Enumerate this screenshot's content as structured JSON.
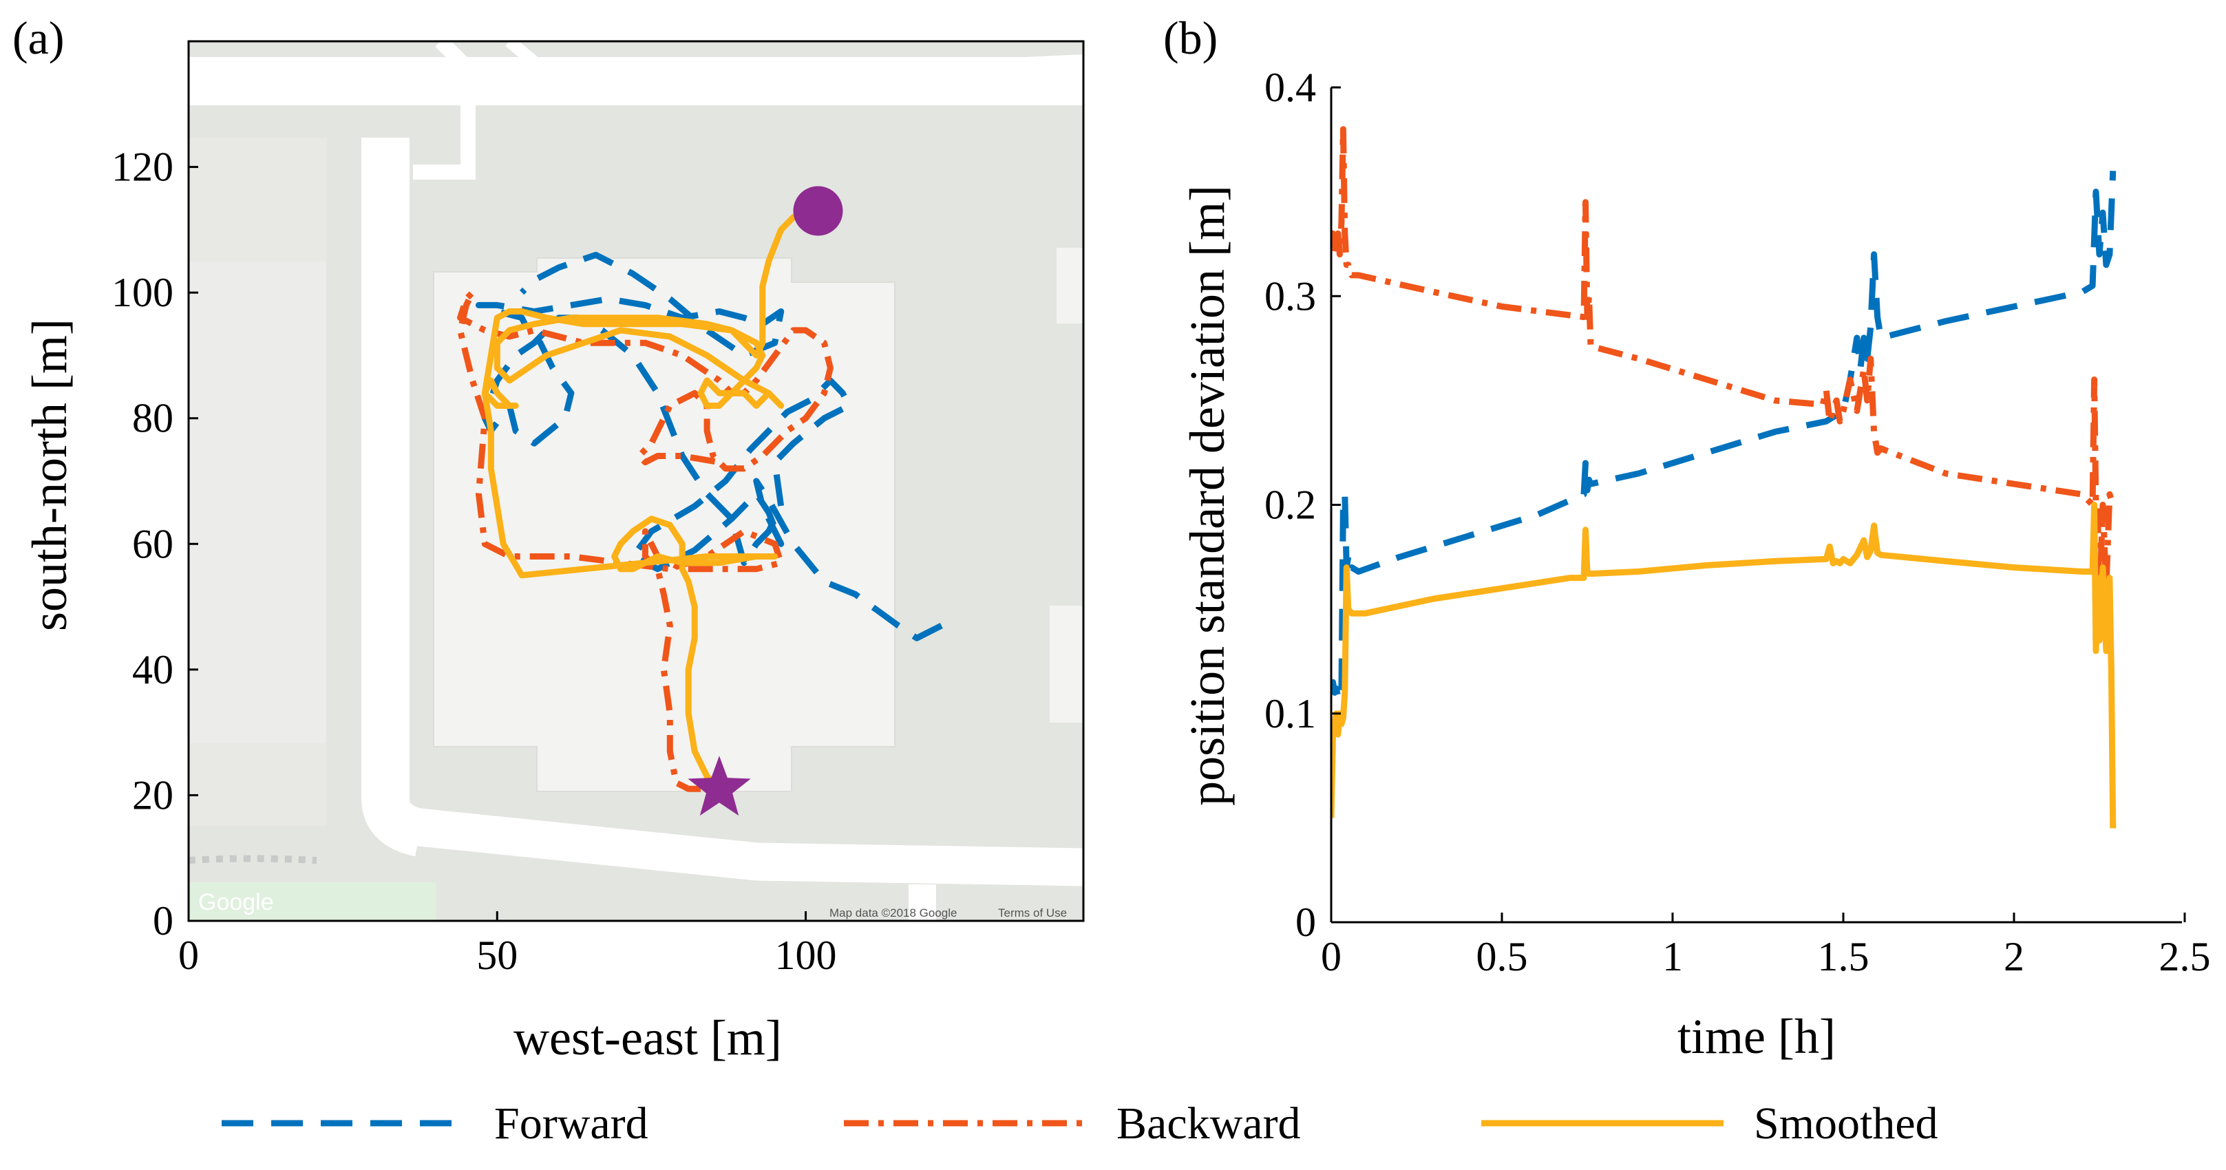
{
  "colors": {
    "forward": "#0072BD",
    "backward": "#F0551A",
    "smoothed": "#FBB117",
    "marker": "#8E2C91"
  },
  "map": {
    "logo": "Google",
    "credit": "Map data ©2018 Google",
    "terms": "Terms of Use"
  },
  "legend": [
    {
      "key": "forward",
      "label": "Forward"
    },
    {
      "key": "backward",
      "label": "Backward"
    },
    {
      "key": "smoothed",
      "label": "Smoothed"
    }
  ],
  "chart_data": [
    {
      "panel": "(a)",
      "type": "line",
      "xlabel": "west-east [m]",
      "ylabel": "south-north [m]",
      "xlim": [
        0,
        145
      ],
      "ylim": [
        0,
        140
      ],
      "xticks": [
        0,
        50,
        100
      ],
      "yticks": [
        0,
        20,
        40,
        60,
        80,
        100,
        120
      ],
      "markers": [
        {
          "shape": "circle",
          "x": 102,
          "y": 113
        },
        {
          "shape": "star",
          "x": 86,
          "y": 21
        }
      ],
      "series": [
        {
          "name": "Forward",
          "style": "dashed",
          "x": [
            122,
            118,
            115,
            108,
            103,
            98,
            94,
            92,
            93,
            96,
            94,
            92,
            88,
            82,
            76,
            72,
            75,
            82,
            87,
            91,
            94,
            97,
            101,
            104,
            106,
            107,
            103,
            98,
            95,
            96,
            94,
            92,
            90,
            88,
            84,
            80,
            76,
            72,
            67,
            63,
            60,
            56,
            53,
            50,
            48,
            49,
            52,
            53,
            56,
            61,
            62,
            59,
            57,
            55,
            54,
            50,
            48,
            47,
            50,
            56,
            62,
            68,
            74,
            80,
            86,
            90,
            93,
            96,
            95,
            90,
            84,
            78,
            72,
            66,
            60,
            56,
            54
          ],
          "y": [
            47,
            45,
            47,
            52,
            54,
            60,
            67,
            70,
            66,
            60,
            65,
            68,
            64,
            59,
            56,
            58,
            62,
            66,
            70,
            75,
            78,
            81,
            83,
            86,
            84,
            82,
            80,
            76,
            73,
            66,
            62,
            60,
            57,
            64,
            68,
            74,
            84,
            90,
            94,
            96,
            96,
            92,
            90,
            86,
            80,
            78,
            82,
            78,
            76,
            80,
            84,
            88,
            92,
            94,
            96,
            97,
            98,
            98,
            98,
            97,
            98,
            99,
            98,
            96,
            97,
            96,
            95,
            97,
            92,
            90,
            94,
            99,
            103,
            106,
            104,
            102,
            100
          ]
        },
        {
          "name": "Backward",
          "style": "dashdot",
          "x": [
            83,
            81,
            79,
            78,
            78,
            77,
            78,
            77,
            76,
            74,
            74,
            76,
            80,
            86,
            92,
            96,
            95,
            90,
            84,
            78,
            70,
            62,
            52,
            48,
            47,
            48,
            46,
            45,
            44,
            45,
            46,
            45,
            44,
            48,
            52,
            56,
            60,
            64,
            68,
            74,
            80,
            83,
            86,
            88,
            90,
            92,
            95,
            98,
            100,
            103,
            104,
            103,
            100,
            97,
            93,
            90,
            87,
            85,
            84,
            84,
            82,
            78,
            76,
            75,
            73,
            74,
            76,
            80,
            86
          ],
          "y": [
            21,
            21,
            22,
            27,
            33,
            40,
            47,
            52,
            56,
            58,
            62,
            58,
            56,
            56,
            56,
            57,
            60,
            62,
            58,
            56,
            57,
            58,
            58,
            60,
            68,
            80,
            86,
            90,
            94,
            98,
            100,
            99,
            96,
            94,
            93,
            94,
            93,
            92,
            92,
            92,
            90,
            88,
            86,
            84,
            84,
            86,
            90,
            94,
            94,
            92,
            88,
            84,
            80,
            78,
            74,
            72,
            72,
            74,
            78,
            82,
            84,
            82,
            78,
            76,
            74,
            73,
            74,
            74,
            73
          ]
        },
        {
          "name": "Smoothed",
          "style": "solid",
          "x": [
            86,
            84,
            82,
            81,
            81,
            82,
            82,
            81,
            80,
            80,
            78,
            75,
            72,
            70,
            69,
            70,
            72,
            74,
            76,
            80,
            86,
            92,
            95,
            90,
            84,
            74,
            64,
            54,
            51,
            50,
            49,
            49,
            48,
            49,
            50,
            52,
            53,
            52,
            50,
            48,
            49,
            50,
            52,
            54,
            58,
            64,
            72,
            80,
            88,
            92,
            93,
            92,
            89,
            86,
            84,
            83,
            84,
            86,
            88,
            90,
            92,
            94,
            96,
            94,
            90,
            84,
            78,
            70,
            64,
            58,
            52,
            50,
            50,
            52,
            56,
            62,
            68,
            76,
            84,
            88,
            90,
            92,
            93,
            93,
            93,
            93,
            94,
            96,
            98,
            100,
            101
          ],
          "y": [
            21,
            23,
            27,
            33,
            40,
            45,
            50,
            54,
            56,
            60,
            63,
            64,
            62,
            60,
            58,
            56,
            56,
            57,
            58,
            57,
            57,
            58,
            58,
            58,
            58,
            57,
            56,
            55,
            60,
            66,
            72,
            78,
            84,
            86,
            84,
            82,
            82,
            82,
            82,
            84,
            90,
            96,
            97,
            97,
            96,
            95,
            95,
            95,
            94,
            92,
            90,
            88,
            85,
            82,
            82,
            84,
            86,
            84,
            84,
            84,
            82,
            84,
            82,
            84,
            86,
            90,
            93,
            94,
            92,
            90,
            86,
            88,
            92,
            94,
            95,
            96,
            96,
            96,
            95,
            94,
            92,
            90,
            92,
            95,
            98,
            101,
            105,
            110,
            112,
            113,
            113
          ]
        }
      ]
    },
    {
      "panel": "(b)",
      "type": "line",
      "xlabel": "time [h]",
      "ylabel": "position standard deviation [m]",
      "xlim": [
        0,
        2.5
      ],
      "ylim": [
        0,
        0.4
      ],
      "xticks": [
        0,
        0.5,
        1,
        1.5,
        2,
        2.5
      ],
      "xticklabels": [
        "0",
        "0.5",
        "1",
        "1.5",
        "2",
        "2.5"
      ],
      "yticks": [
        0,
        0.1,
        0.2,
        0.3,
        0.4
      ],
      "yticklabels": [
        "0",
        "0.1",
        "0.2",
        "0.3",
        "0.4"
      ],
      "series": [
        {
          "name": "Forward",
          "style": "dashed",
          "x": [
            0,
            0.005,
            0.01,
            0.015,
            0.02,
            0.025,
            0.03,
            0.035,
            0.04,
            0.045,
            0.05,
            0.055,
            0.06,
            0.08,
            0.2,
            0.4,
            0.6,
            0.74,
            0.745,
            0.75,
            0.755,
            0.76,
            0.9,
            1.1,
            1.3,
            1.45,
            1.5,
            1.52,
            1.53,
            1.54,
            1.55,
            1.56,
            1.57,
            1.58,
            1.59,
            1.6,
            1.61,
            1.8,
            2.0,
            2.2,
            2.23,
            2.24,
            2.25,
            2.26,
            2.27,
            2.28,
            2.29
          ],
          "y": [
            0.11,
            0.115,
            0.11,
            0.112,
            0.108,
            0.112,
            0.11,
            0.2,
            0.205,
            0.17,
            0.175,
            0.168,
            0.17,
            0.168,
            0.175,
            0.185,
            0.195,
            0.205,
            0.22,
            0.207,
            0.212,
            0.21,
            0.215,
            0.225,
            0.235,
            0.24,
            0.245,
            0.26,
            0.27,
            0.28,
            0.265,
            0.28,
            0.27,
            0.285,
            0.32,
            0.29,
            0.28,
            0.288,
            0.295,
            0.302,
            0.305,
            0.35,
            0.32,
            0.34,
            0.315,
            0.32,
            0.36
          ]
        },
        {
          "name": "Backward",
          "style": "dashdot",
          "x": [
            0,
            0.005,
            0.01,
            0.015,
            0.02,
            0.025,
            0.03,
            0.035,
            0.04,
            0.045,
            0.05,
            0.055,
            0.06,
            0.08,
            0.3,
            0.5,
            0.74,
            0.745,
            0.75,
            0.755,
            0.76,
            0.9,
            1.1,
            1.3,
            1.44,
            1.45,
            1.46,
            1.47,
            1.48,
            1.49,
            1.5,
            1.52,
            1.54,
            1.56,
            1.57,
            1.58,
            1.59,
            1.6,
            1.61,
            1.8,
            2.0,
            2.2,
            2.23,
            2.235,
            2.24,
            2.245,
            2.25,
            2.26,
            2.27,
            2.28,
            2.29
          ],
          "y": [
            0.325,
            0.33,
            0.32,
            0.325,
            0.33,
            0.32,
            0.335,
            0.38,
            0.33,
            0.315,
            0.315,
            0.312,
            0.31,
            0.31,
            0.302,
            0.295,
            0.29,
            0.345,
            0.29,
            0.3,
            0.276,
            0.27,
            0.26,
            0.25,
            0.248,
            0.255,
            0.24,
            0.245,
            0.25,
            0.24,
            0.245,
            0.26,
            0.245,
            0.265,
            0.25,
            0.27,
            0.235,
            0.225,
            0.227,
            0.215,
            0.21,
            0.205,
            0.2,
            0.26,
            0.2,
            0.2,
            0.15,
            0.2,
            0.16,
            0.205,
            0.2
          ]
        },
        {
          "name": "Smoothed",
          "style": "solid",
          "x": [
            0,
            0.005,
            0.01,
            0.015,
            0.02,
            0.025,
            0.03,
            0.035,
            0.04,
            0.045,
            0.05,
            0.06,
            0.1,
            0.3,
            0.5,
            0.7,
            0.74,
            0.745,
            0.75,
            0.755,
            0.76,
            0.9,
            1.1,
            1.3,
            1.45,
            1.46,
            1.47,
            1.48,
            1.49,
            1.5,
            1.52,
            1.54,
            1.56,
            1.57,
            1.58,
            1.59,
            1.6,
            1.61,
            1.8,
            2.0,
            2.2,
            2.23,
            2.235,
            2.24,
            2.245,
            2.25,
            2.26,
            2.27,
            2.28,
            2.285,
            2.29
          ],
          "y": [
            0.05,
            0.09,
            0.095,
            0.1,
            0.09,
            0.1,
            0.095,
            0.098,
            0.11,
            0.17,
            0.15,
            0.148,
            0.148,
            0.155,
            0.16,
            0.165,
            0.165,
            0.188,
            0.168,
            0.167,
            0.167,
            0.168,
            0.171,
            0.173,
            0.174,
            0.18,
            0.172,
            0.173,
            0.172,
            0.174,
            0.172,
            0.176,
            0.183,
            0.175,
            0.178,
            0.19,
            0.177,
            0.176,
            0.173,
            0.17,
            0.168,
            0.168,
            0.2,
            0.13,
            0.165,
            0.135,
            0.17,
            0.13,
            0.165,
            0.12,
            0.045
          ]
        }
      ]
    }
  ]
}
